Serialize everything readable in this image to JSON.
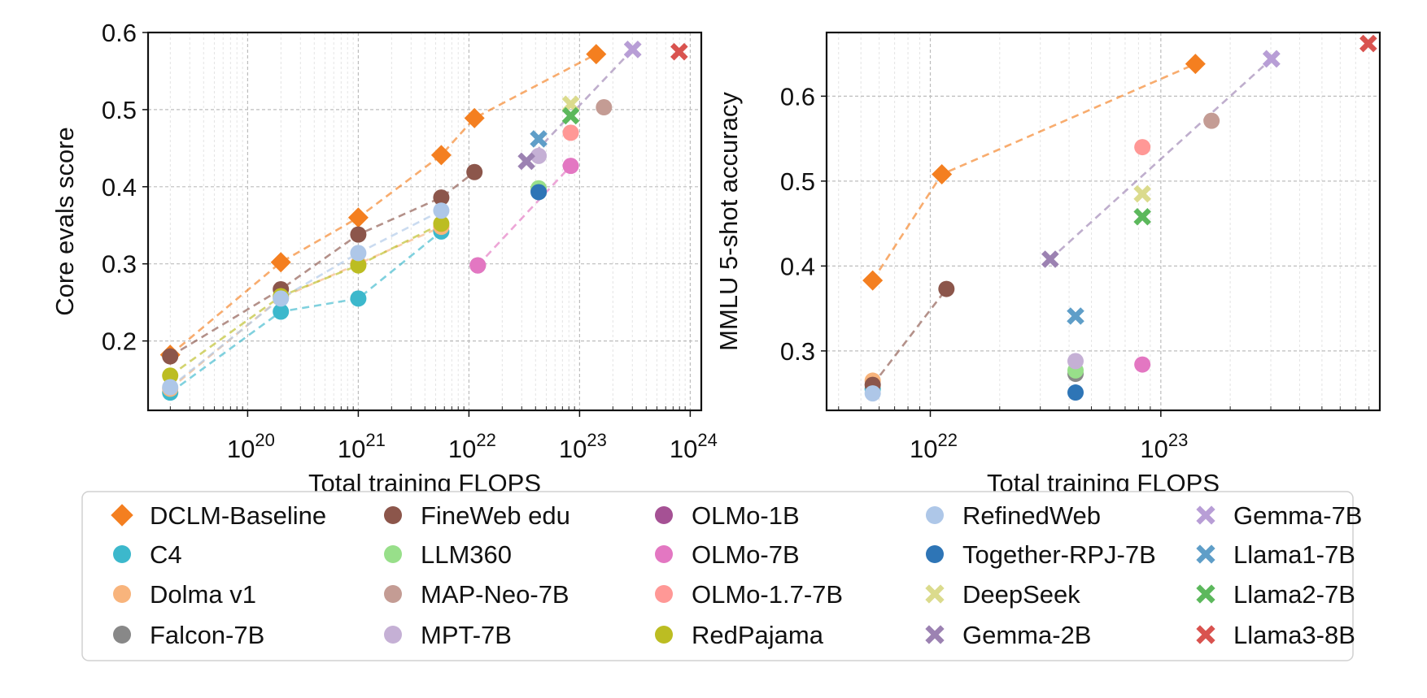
{
  "styles": {
    "DCLM-Baseline": {
      "color": "#f47f20",
      "marker": "diamond"
    },
    "C4": {
      "color": "#3cb8cc",
      "marker": "circle"
    },
    "Dolma v1": {
      "color": "#f8b47c",
      "marker": "circle"
    },
    "Falcon-7B": {
      "color": "#888888",
      "marker": "circle"
    },
    "FineWeb edu": {
      "color": "#8c564b",
      "marker": "circle"
    },
    "LLM360": {
      "color": "#98df8a",
      "marker": "circle"
    },
    "MAP-Neo-7B": {
      "color": "#c49c94",
      "marker": "circle"
    },
    "MPT-7B": {
      "color": "#c5b0d5",
      "marker": "circle"
    },
    "OLMo-1B": {
      "color": "#a55194",
      "marker": "circle"
    },
    "OLMo-7B": {
      "color": "#e377c2",
      "marker": "circle"
    },
    "OLMo-1.7-7B": {
      "color": "#ff9896",
      "marker": "circle"
    },
    "RedPajama": {
      "color": "#bcbd22",
      "marker": "circle"
    },
    "RefinedWeb": {
      "color": "#aec7e8",
      "marker": "circle"
    },
    "Together-RPJ-7B": {
      "color": "#2e75b6",
      "marker": "circle"
    },
    "DeepSeek": {
      "color": "#dbdb8d",
      "marker": "x"
    },
    "Gemma-2B": {
      "color": "#9c82b2",
      "marker": "x"
    },
    "Gemma-7B": {
      "color": "#b89ed6",
      "marker": "x"
    },
    "Llama1-7B": {
      "color": "#5f9ec8",
      "marker": "x"
    },
    "Llama2-7B": {
      "color": "#5cb85c",
      "marker": "x"
    },
    "Llama3-8B": {
      "color": "#d9534f",
      "marker": "x"
    }
  },
  "legend": {
    "columns": [
      [
        "DCLM-Baseline",
        "C4",
        "Dolma v1",
        "Falcon-7B"
      ],
      [
        "FineWeb edu",
        "LLM360",
        "MAP-Neo-7B",
        "MPT-7B"
      ],
      [
        "OLMo-1B",
        "OLMo-7B",
        "OLMo-1.7-7B",
        "RedPajama"
      ],
      [
        "RefinedWeb",
        "Together-RPJ-7B",
        "DeepSeek",
        "Gemma-2B"
      ],
      [
        "Gemma-7B",
        "Llama1-7B",
        "Llama2-7B",
        "Llama3-8B"
      ]
    ]
  },
  "chart_data": [
    {
      "type": "scatter",
      "xscale": "log",
      "xlabel": "Total training FLOPS",
      "ylabel": "Core evals score",
      "xlim_log10": [
        19.1,
        24.1
      ],
      "ylim": [
        0.11,
        0.6
      ],
      "grid": true,
      "x_ticks": [
        {
          "exp": 20,
          "label": "10",
          "sup": "20"
        },
        {
          "exp": 21,
          "label": "10",
          "sup": "21"
        },
        {
          "exp": 22,
          "label": "10",
          "sup": "22"
        },
        {
          "exp": 23,
          "label": "10",
          "sup": "23"
        },
        {
          "exp": 24,
          "label": "10",
          "sup": "24"
        }
      ],
      "y_ticks": [
        {
          "value": 0.2,
          "label": "0.2"
        },
        {
          "value": 0.3,
          "label": "0.3"
        },
        {
          "value": 0.4,
          "label": "0.4"
        },
        {
          "value": 0.5,
          "label": "0.5"
        },
        {
          "value": 0.6,
          "label": "0.6"
        }
      ],
      "series": [
        {
          "name": "DCLM-Baseline",
          "line": true,
          "points": [
            [
              19.3,
              0.182
            ],
            [
              20.3,
              0.302
            ],
            [
              21.0,
              0.36
            ],
            [
              21.75,
              0.441
            ],
            [
              22.05,
              0.489
            ],
            [
              23.15,
              0.572
            ]
          ]
        },
        {
          "name": "C4",
          "line": true,
          "points": [
            [
              19.3,
              0.133
            ],
            [
              20.3,
              0.238
            ],
            [
              21.0,
              0.255
            ],
            [
              21.75,
              0.342
            ]
          ]
        },
        {
          "name": "Dolma v1",
          "line": true,
          "points": [
            [
              19.3,
              0.138
            ],
            [
              20.3,
              0.256
            ],
            [
              21.0,
              0.3
            ],
            [
              21.75,
              0.348
            ]
          ]
        },
        {
          "name": "Falcon-7B",
          "line": false,
          "points": [
            [
              22.63,
              0.395
            ]
          ]
        },
        {
          "name": "FineWeb edu",
          "line": true,
          "points": [
            [
              19.3,
              0.18
            ],
            [
              20.3,
              0.267
            ],
            [
              21.0,
              0.338
            ],
            [
              21.75,
              0.386
            ],
            [
              22.05,
              0.419
            ]
          ]
        },
        {
          "name": "LLM360",
          "line": false,
          "points": [
            [
              22.63,
              0.398
            ]
          ]
        },
        {
          "name": "MAP-Neo-7B",
          "line": false,
          "points": [
            [
              23.22,
              0.503
            ]
          ]
        },
        {
          "name": "MPT-7B",
          "line": false,
          "points": [
            [
              22.63,
              0.44
            ]
          ]
        },
        {
          "name": "OLMo-1B",
          "line": false,
          "points": [
            [
              22.08,
              0.298
            ]
          ]
        },
        {
          "name": "OLMo-7B",
          "line": true,
          "points": [
            [
              22.08,
              0.298
            ],
            [
              22.92,
              0.427
            ]
          ]
        },
        {
          "name": "OLMo-1.7-7B",
          "line": false,
          "points": [
            [
              22.92,
              0.47
            ]
          ]
        },
        {
          "name": "RedPajama",
          "line": true,
          "points": [
            [
              19.3,
              0.155
            ],
            [
              20.3,
              0.258
            ],
            [
              21.0,
              0.298
            ],
            [
              21.75,
              0.352
            ]
          ]
        },
        {
          "name": "RefinedWeb",
          "line": true,
          "points": [
            [
              19.3,
              0.14
            ],
            [
              20.3,
              0.255
            ],
            [
              21.0,
              0.314
            ],
            [
              21.75,
              0.369
            ]
          ]
        },
        {
          "name": "Together-RPJ-7B",
          "line": false,
          "points": [
            [
              22.63,
              0.393
            ]
          ]
        },
        {
          "name": "DeepSeek",
          "line": false,
          "points": [
            [
              22.92,
              0.507
            ]
          ]
        },
        {
          "name": "Gemma-2B",
          "line": true,
          "points": [
            [
              22.52,
              0.433
            ],
            [
              23.48,
              0.578
            ]
          ]
        },
        {
          "name": "Gemma-7B",
          "line": false,
          "points": [
            [
              23.48,
              0.578
            ]
          ]
        },
        {
          "name": "Llama1-7B",
          "line": false,
          "points": [
            [
              22.63,
              0.462
            ]
          ]
        },
        {
          "name": "Llama2-7B",
          "line": false,
          "points": [
            [
              22.92,
              0.492
            ]
          ]
        },
        {
          "name": "Llama3-8B",
          "line": false,
          "points": [
            [
              23.9,
              0.575
            ]
          ]
        }
      ]
    },
    {
      "type": "scatter",
      "xscale": "log",
      "xlabel": "Total training FLOPS",
      "ylabel": "MMLU 5-shot accuracy",
      "xlim_log10": [
        21.55,
        23.95
      ],
      "ylim": [
        0.23,
        0.675
      ],
      "grid": true,
      "x_ticks": [
        {
          "exp": 22,
          "label": "10",
          "sup": "22"
        },
        {
          "exp": 23,
          "label": "10",
          "sup": "23"
        }
      ],
      "y_ticks": [
        {
          "value": 0.3,
          "label": "0.3"
        },
        {
          "value": 0.4,
          "label": "0.4"
        },
        {
          "value": 0.5,
          "label": "0.5"
        },
        {
          "value": 0.6,
          "label": "0.6"
        }
      ],
      "series": [
        {
          "name": "DCLM-Baseline",
          "line": true,
          "points": [
            [
              21.75,
              0.383
            ],
            [
              22.05,
              0.508
            ],
            [
              23.15,
              0.638
            ]
          ]
        },
        {
          "name": "C4",
          "line": false,
          "points": [
            [
              21.75,
              0.255
            ]
          ]
        },
        {
          "name": "Dolma v1",
          "line": false,
          "points": [
            [
              21.75,
              0.265
            ]
          ]
        },
        {
          "name": "Falcon-7B",
          "line": false,
          "points": [
            [
              22.63,
              0.273
            ]
          ]
        },
        {
          "name": "FineWeb edu",
          "line": true,
          "points": [
            [
              21.75,
              0.26
            ],
            [
              22.07,
              0.373
            ]
          ]
        },
        {
          "name": "LLM360",
          "line": false,
          "points": [
            [
              22.63,
              0.277
            ]
          ]
        },
        {
          "name": "MAP-Neo-7B",
          "line": false,
          "points": [
            [
              23.22,
              0.571
            ]
          ]
        },
        {
          "name": "MPT-7B",
          "line": false,
          "points": [
            [
              22.63,
              0.288
            ]
          ]
        },
        {
          "name": "OLMo-1B",
          "line": false,
          "points": []
        },
        {
          "name": "OLMo-7B",
          "line": false,
          "points": [
            [
              22.92,
              0.284
            ]
          ]
        },
        {
          "name": "OLMo-1.7-7B",
          "line": false,
          "points": [
            [
              22.92,
              0.54
            ]
          ]
        },
        {
          "name": "RedPajama",
          "line": false,
          "points": []
        },
        {
          "name": "RefinedWeb",
          "line": false,
          "points": [
            [
              21.75,
              0.25
            ]
          ]
        },
        {
          "name": "Together-RPJ-7B",
          "line": false,
          "points": [
            [
              22.63,
              0.251
            ]
          ]
        },
        {
          "name": "DeepSeek",
          "line": false,
          "points": [
            [
              22.92,
              0.485
            ]
          ]
        },
        {
          "name": "Gemma-2B",
          "line": true,
          "points": [
            [
              22.52,
              0.408
            ],
            [
              23.48,
              0.644
            ]
          ]
        },
        {
          "name": "Gemma-7B",
          "line": false,
          "points": [
            [
              23.48,
              0.644
            ]
          ]
        },
        {
          "name": "Llama1-7B",
          "line": false,
          "points": [
            [
              22.63,
              0.341
            ]
          ]
        },
        {
          "name": "Llama2-7B",
          "line": false,
          "points": [
            [
              22.92,
              0.458
            ]
          ]
        },
        {
          "name": "Llama3-8B",
          "line": false,
          "points": [
            [
              23.9,
              0.662
            ]
          ]
        }
      ]
    }
  ]
}
